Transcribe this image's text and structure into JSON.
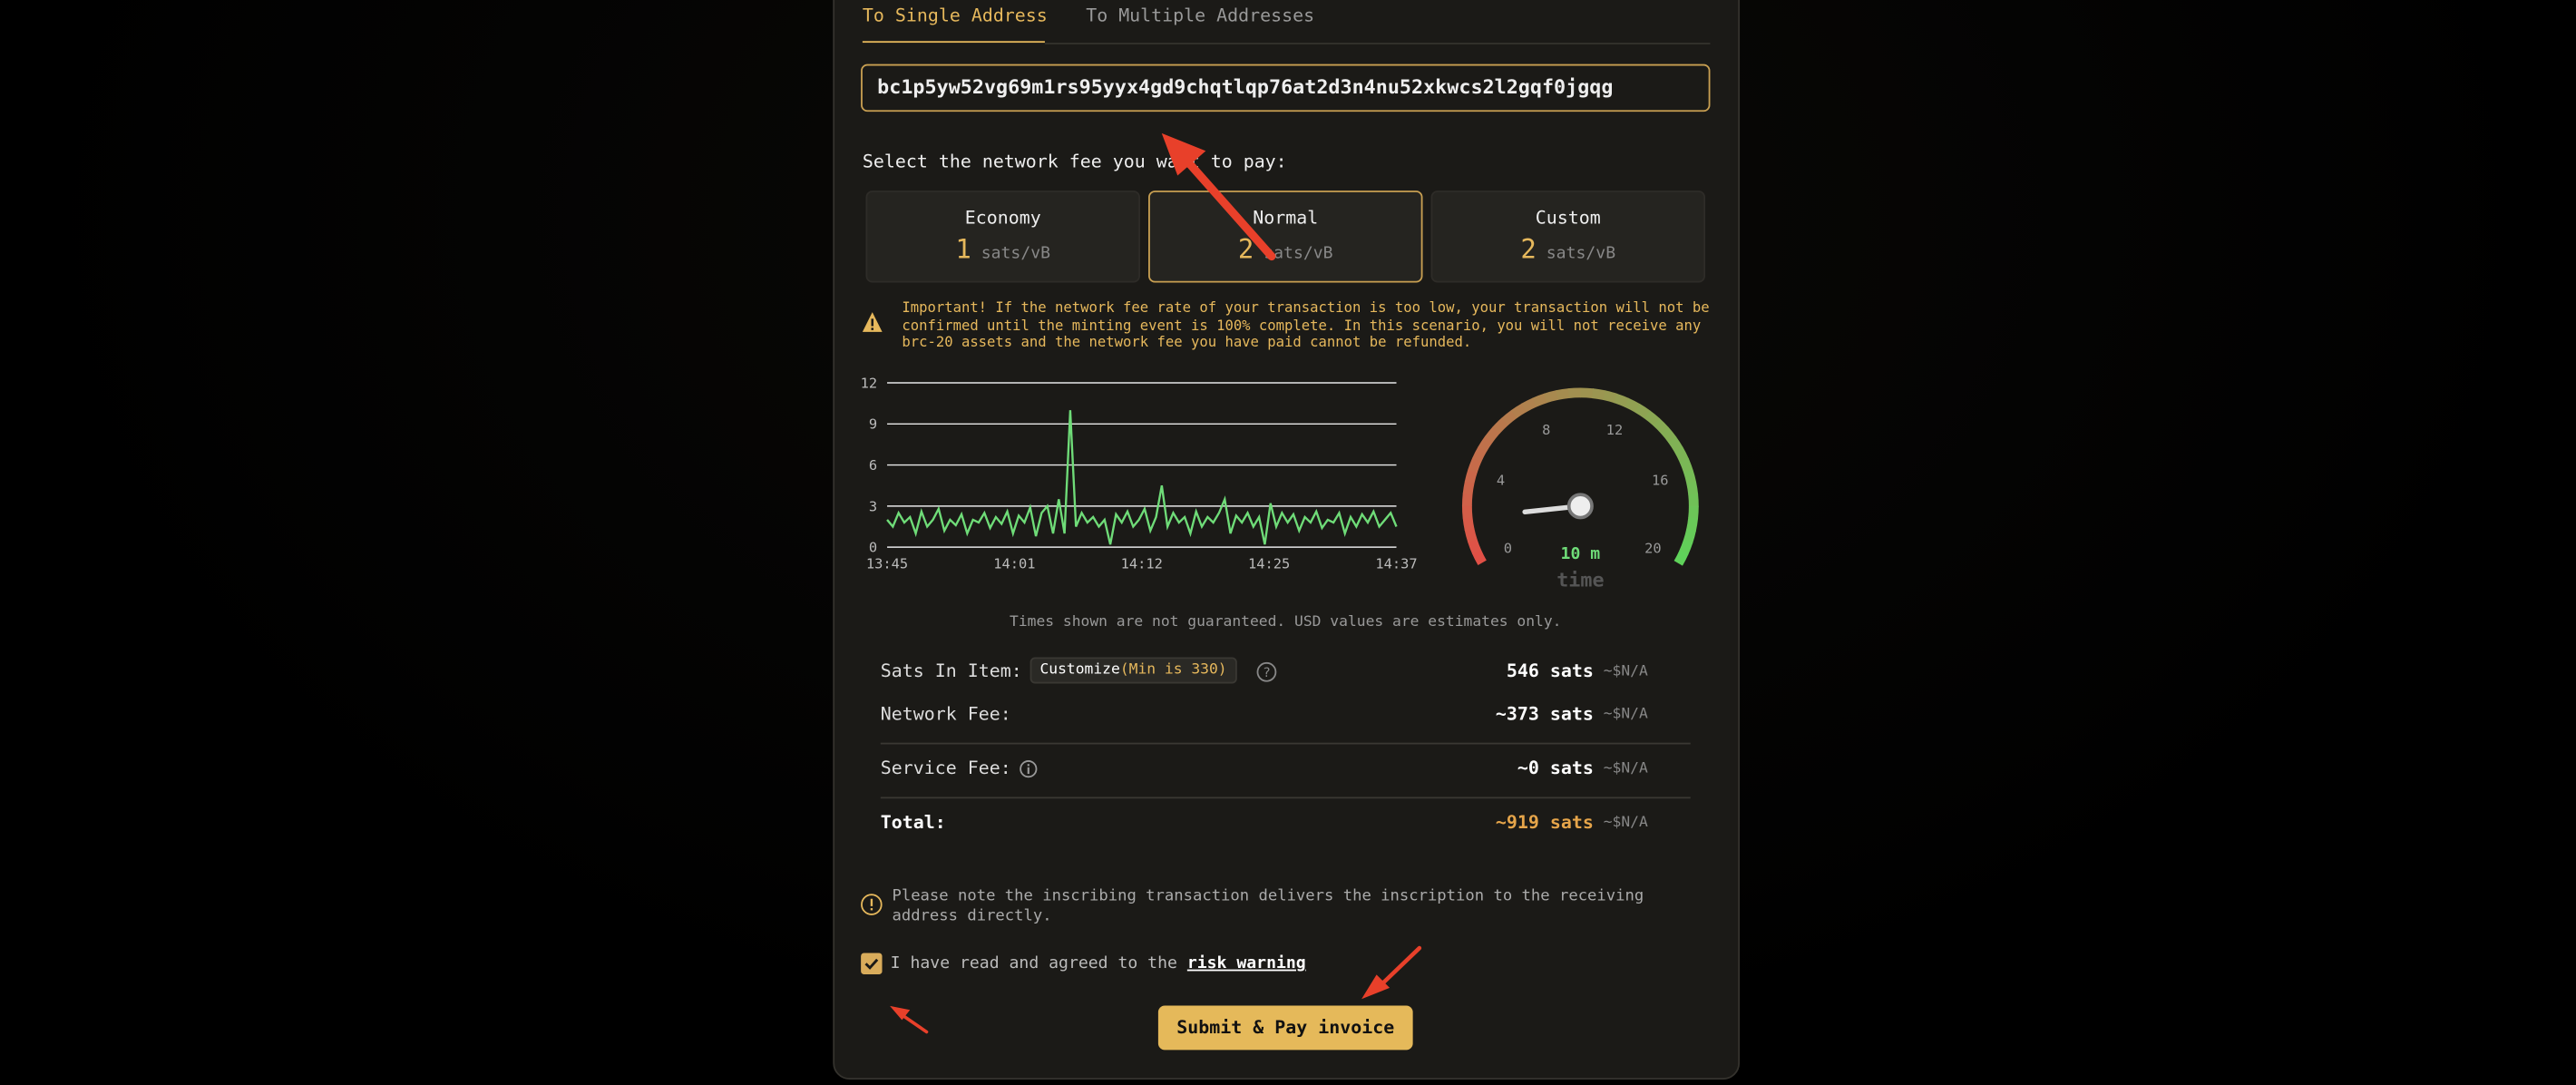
{
  "tabs": [
    "To Single Address",
    "To Multiple Addresses"
  ],
  "address": "bc1p5yw52vg69m1rs95yyx4gd9chqtlqp76at2d3n4nu52xkwcs2l2gqf0jgqg",
  "fee_prompt": "Select the network fee you want to pay:",
  "fee_options": [
    {
      "name": "Economy",
      "rate": 1,
      "unit": "sats/vB"
    },
    {
      "name": "Normal",
      "rate": 2,
      "unit": "sats/vB"
    },
    {
      "name": "Custom",
      "rate": 2,
      "unit": "sats/vB"
    }
  ],
  "warning": "Important! If the network fee rate of your transaction is too low, your transaction will not be confirmed until the minting event is 100% complete. In this scenario, you will not receive any brc-20 assets and the network fee you have paid cannot be refunded.",
  "chart_data": {
    "type": "line",
    "xticks": [
      "13:45",
      "14:01",
      "14:12",
      "14:25",
      "14:37"
    ],
    "ylim": [
      0,
      12
    ],
    "yticks": [
      0,
      3,
      6,
      9,
      12
    ],
    "grid": true,
    "series": [
      {
        "color": "#6fdc78",
        "values": [
          2,
          1.5,
          2.5,
          1.8,
          2.2,
          1,
          2.6,
          1.5,
          2,
          2.8,
          1.2,
          2,
          1.6,
          2.4,
          1,
          2,
          1.8,
          2.5,
          1.4,
          2.2,
          1.7,
          2.6,
          1,
          2.3,
          1.8,
          2.9,
          0.8,
          2.5,
          3,
          1,
          3.5,
          1,
          10,
          1.5,
          2.5,
          1.8,
          2.2,
          1.5,
          2,
          0.2,
          2.4,
          1.8,
          2.6,
          1.5,
          2,
          2.8,
          1.2,
          2.2,
          4.5,
          1.5,
          2.5,
          1.8,
          2.2,
          1,
          2.6,
          1.5,
          2.2,
          1.8,
          2.5,
          3.5,
          1,
          2.3,
          1.8,
          2.5,
          1.5,
          2.2,
          0.2,
          3.2,
          1.5,
          2.5,
          1.8,
          2.4,
          1.2,
          2.2,
          1.8,
          2.6,
          1.4,
          2,
          1.8,
          2.5,
          1,
          2.2,
          1.5,
          2.4,
          1.8,
          2.6,
          1.5,
          2,
          2.5,
          1.5
        ]
      }
    ]
  },
  "gauge": {
    "value": 2,
    "range": [
      0,
      20
    ],
    "ticks": [
      0,
      4,
      8,
      12,
      16,
      20
    ],
    "time": "10 m",
    "label": "time"
  },
  "disclaimer": "Times shown are not guaranteed. USD values are estimates only.",
  "summary": {
    "sats_label": "Sats In Item:",
    "customize": "Customize",
    "min": "(Min is 330)",
    "sats": "546 sats",
    "sats_usd": "~$N/A",
    "network_label": "Network Fee:",
    "network": "~373 sats",
    "network_usd": "~$N/A",
    "service_label": "Service Fee:",
    "service": "~0 sats",
    "service_usd": "~$N/A",
    "total_label": "Total:",
    "total": "~919 sats",
    "total_usd": "~$N/A"
  },
  "note": [
    "Please note the inscribing transaction delivers the inscription to the receiving",
    "address directly."
  ],
  "agree": {
    "text": "I have read and agreed to the",
    "link": "risk warning"
  },
  "submit": "Submit & Pay invoice"
}
